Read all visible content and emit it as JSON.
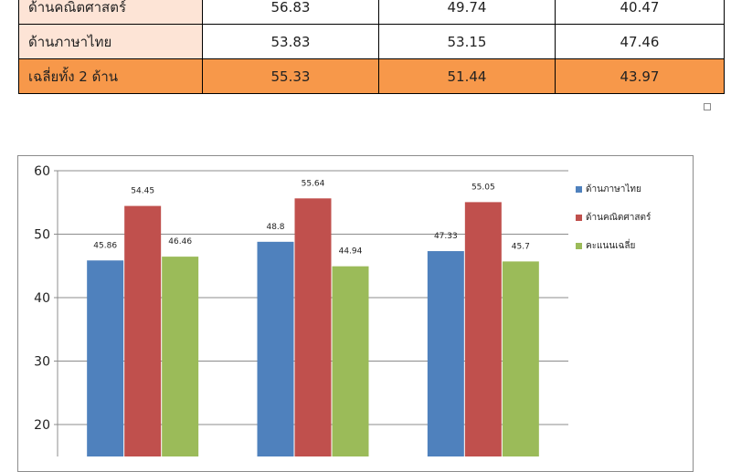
{
  "table": {
    "rows": [
      {
        "label": "ด้านคณิตศาสตร์",
        "values": [
          "56.83",
          "49.74",
          "40.47"
        ]
      },
      {
        "label": "ด้านภาษาไทย",
        "values": [
          "53.83",
          "53.15",
          "47.46"
        ]
      },
      {
        "label": "เฉลี่ยทั้ง 2 ด้าน",
        "values": [
          "55.33",
          "51.44",
          "43.97"
        ]
      }
    ],
    "highlight_color": "#f7984a",
    "label_bg_color": "#fde4d6"
  },
  "chart_data": {
    "type": "bar",
    "categories": [
      "",
      "",
      ""
    ],
    "series": [
      {
        "name": "ด้านภาษาไทย",
        "color": "#4f81bd",
        "values": [
          45.86,
          48.8,
          47.33
        ],
        "labels": [
          "45.86",
          "48.8",
          "47.33"
        ]
      },
      {
        "name": "ด้านคณิตศาสตร์",
        "color": "#c0504d",
        "values": [
          54.45,
          55.64,
          55.05
        ],
        "labels": [
          "54.45",
          "55.64",
          "55.05"
        ]
      },
      {
        "name": "คะแนนเฉลี่ย",
        "color": "#9bbb59",
        "values": [
          46.46,
          44.94,
          45.7
        ],
        "labels": [
          "46.46",
          "44.94",
          "45.7"
        ]
      }
    ],
    "yticks": [
      "20",
      "30",
      "40",
      "50",
      "60"
    ],
    "ylim": [
      10,
      60
    ],
    "grid": true,
    "legend": "right",
    "title": "",
    "xlabel": "",
    "ylabel": ""
  }
}
